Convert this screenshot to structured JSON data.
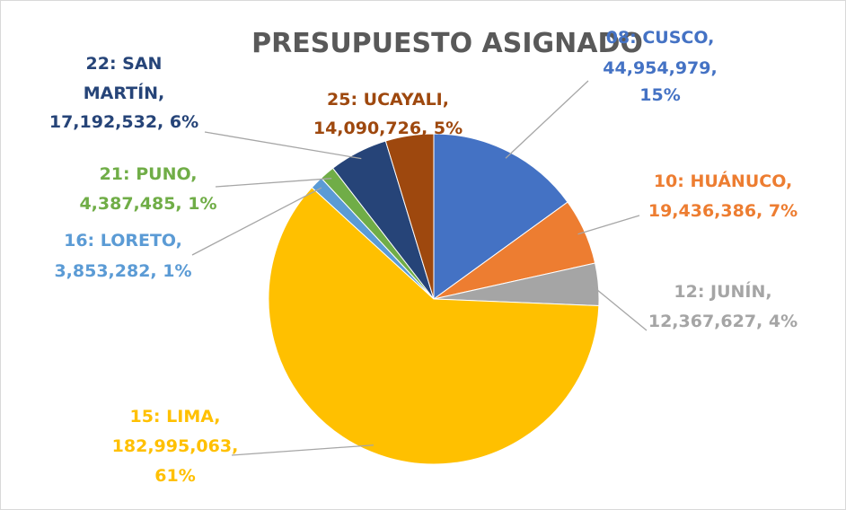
{
  "chart_data": {
    "type": "pie",
    "title": "PRESUPUESTO ASIGNADO",
    "categories": [
      "08: CUSCO",
      "10: HUÁNUCO",
      "12: JUNÍN",
      "15: LIMA",
      "16: LORETO",
      "21: PUNO",
      "22: SAN MARTÍN",
      "25: UCAYALI"
    ],
    "values": [
      44954979,
      19436386,
      12367627,
      182995063,
      3853282,
      4387485,
      17192532,
      14090726
    ],
    "value_labels": [
      "08: CUSCO, 44,954,979, 15%",
      "10: HUÁNUCO, 19,436,386, 7%",
      "12: JUNÍN, 12,367,627, 4%",
      "15: LIMA, 182,995,063, 61%",
      "16: LORETO, 3,853,282, 1%",
      "21: PUNO, 4,387,485, 1%",
      "22: SAN MARTÍN, 17,192,532, 6%",
      "25: UCAYALI, 14,090,726, 5%"
    ],
    "colors": [
      "#4472c4",
      "#ed7d31",
      "#a5a5a5",
      "#ffc000",
      "#5b9bd5",
      "#70ad47",
      "#264478",
      "#9e480e"
    ]
  }
}
